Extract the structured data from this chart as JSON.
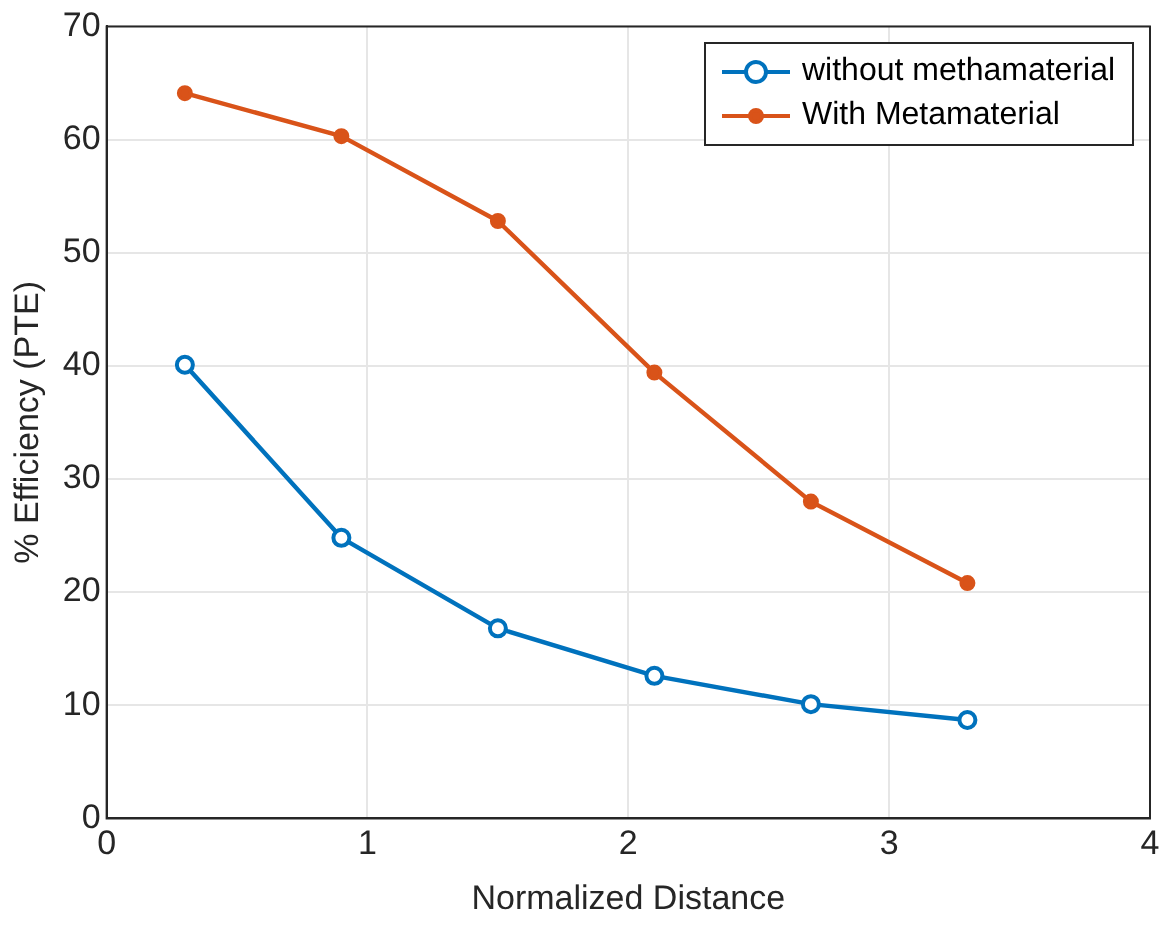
{
  "chart_data": {
    "type": "line",
    "xlabel": "Normalized Distance",
    "ylabel": "% Efficiency (PTE)",
    "x": [
      0.3,
      0.9,
      1.5,
      2.1,
      2.7,
      3.3
    ],
    "series": [
      {
        "name": "without methamaterial",
        "color": "#0072bd",
        "marker": "circle",
        "values": [
          40.1,
          24.8,
          16.8,
          12.6,
          10.1,
          8.7
        ]
      },
      {
        "name": "With Metamaterial",
        "color": "#d95319",
        "marker": "circle",
        "values": [
          64.1,
          60.3,
          52.8,
          39.4,
          28.0,
          20.8
        ]
      }
    ],
    "xlim": [
      0,
      4
    ],
    "xticks": [
      0,
      1,
      2,
      3,
      4
    ],
    "ylim": [
      0,
      70
    ],
    "yticks": [
      0,
      10,
      20,
      30,
      40,
      50,
      60,
      70
    ],
    "grid": true,
    "legend": "top right",
    "line_style": "solid"
  }
}
